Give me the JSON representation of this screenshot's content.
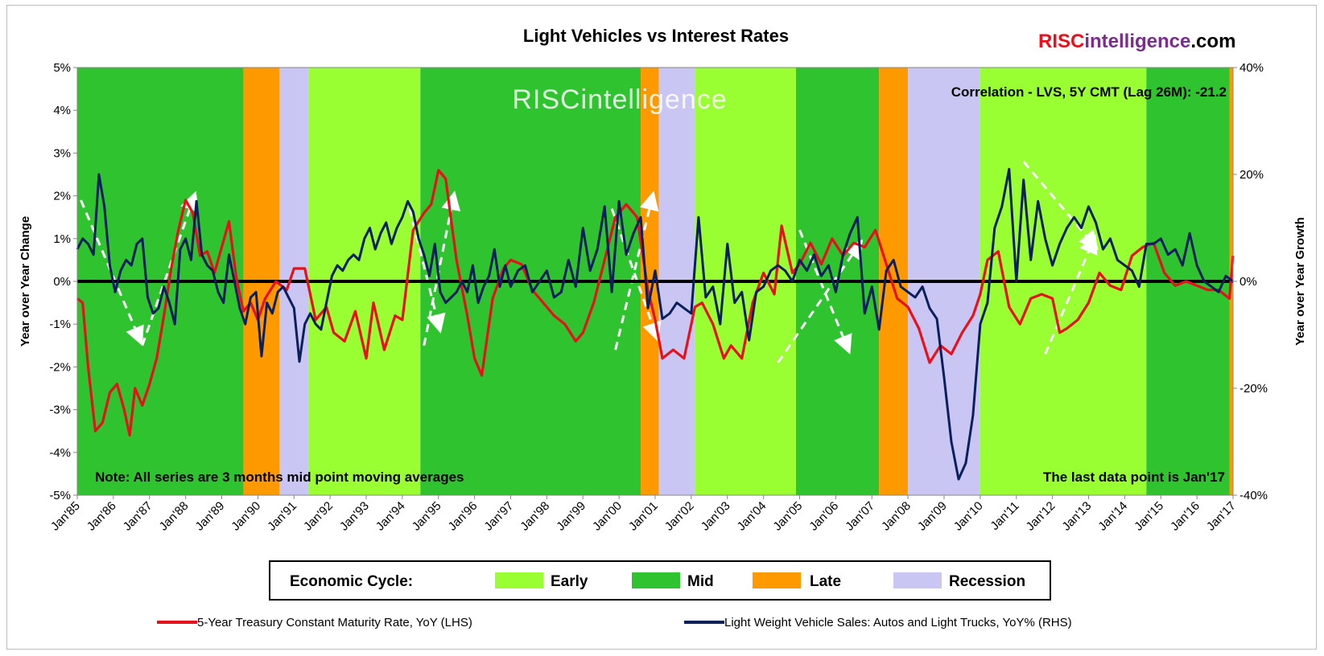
{
  "chart_data": {
    "type": "line",
    "title": "Light Vehicles vs Interest Rates",
    "brand": {
      "part1": "RISC",
      "part2": "intelligence",
      "part3": ".com",
      "color1": "#e8101a",
      "color2": "#7a2d8f",
      "color3": "#000000"
    },
    "watermark": "RISCintelligence",
    "correlation": "Correlation - LVS, 5Y CMT (Lag 26M): -21.2",
    "note_left": "Note: All series are 3 months mid point moving averages",
    "note_right": "The last data point is Jan'17",
    "ylabel_left": "Year over Year Change",
    "ylabel_right": "Year over Year Growth",
    "ylim_left": [
      -5,
      5
    ],
    "ylim_right": [
      -40,
      40
    ],
    "xlim": [
      1985.0,
      2017.0
    ],
    "yticks_left": [
      "5%",
      "4%",
      "3%",
      "2%",
      "1%",
      "0%",
      "-1%",
      "-2%",
      "-3%",
      "-4%",
      "-5%"
    ],
    "yticks_right": [
      "40%",
      "20%",
      "0%",
      "-20%",
      "-40%"
    ],
    "xticks": [
      "Jan'85",
      "Jan'86",
      "Jan'87",
      "Jan'88",
      "Jan'89",
      "Jan'90",
      "Jan'91",
      "Jan'92",
      "Jan'93",
      "Jan'94",
      "Jan'95",
      "Jan'96",
      "Jan'97",
      "Jan'98",
      "Jan'99",
      "Jan'00",
      "Jan'01",
      "Jan'02",
      "Jan'03",
      "Jan'04",
      "Jan'05",
      "Jan'06",
      "Jan'07",
      "Jan'08",
      "Jan'09",
      "Jan'10",
      "Jan'11",
      "Jan'12",
      "Jan'13",
      "Jan'14",
      "Jan'15",
      "Jan'16",
      "Jan'17"
    ],
    "cycle_colors": {
      "Early": "#99ff33",
      "Mid": "#2fc42f",
      "Late": "#ff9900",
      "Recession": "#c9c6f4"
    },
    "cycle_bands": [
      {
        "start": 1985.0,
        "end": 1989.6,
        "phase": "Mid"
      },
      {
        "start": 1989.6,
        "end": 1990.6,
        "phase": "Late"
      },
      {
        "start": 1990.6,
        "end": 1991.4,
        "phase": "Recession"
      },
      {
        "start": 1991.4,
        "end": 1994.5,
        "phase": "Early"
      },
      {
        "start": 1994.5,
        "end": 2000.6,
        "phase": "Mid"
      },
      {
        "start": 2000.6,
        "end": 2001.1,
        "phase": "Late"
      },
      {
        "start": 2001.1,
        "end": 2002.1,
        "phase": "Recession"
      },
      {
        "start": 2002.1,
        "end": 2004.9,
        "phase": "Early"
      },
      {
        "start": 2004.9,
        "end": 2007.2,
        "phase": "Mid"
      },
      {
        "start": 2007.2,
        "end": 2008.0,
        "phase": "Late"
      },
      {
        "start": 2008.0,
        "end": 2010.0,
        "phase": "Recession"
      },
      {
        "start": 2010.0,
        "end": 2014.6,
        "phase": "Early"
      },
      {
        "start": 2014.6,
        "end": 2016.9,
        "phase": "Mid"
      },
      {
        "start": 2016.9,
        "end": 2017.0,
        "phase": "Late"
      }
    ],
    "legend_cycle": {
      "label": "Economic Cycle:",
      "items": [
        "Early",
        "Mid",
        "Late",
        "Recession"
      ]
    },
    "series": [
      {
        "name": "5-Year Treasury Constant Maturity Rate, YoY (LHS)",
        "axis": "left",
        "color": "#e8101a",
        "x": [
          1985.0,
          1985.15,
          1985.3,
          1985.5,
          1985.7,
          1985.9,
          1986.1,
          1986.3,
          1986.45,
          1986.6,
          1986.8,
          1987.0,
          1987.2,
          1987.4,
          1987.6,
          1987.8,
          1988.0,
          1988.2,
          1988.4,
          1988.6,
          1988.8,
          1989.0,
          1989.2,
          1989.4,
          1989.6,
          1989.8,
          1990.0,
          1990.2,
          1990.5,
          1990.8,
          1991.0,
          1991.3,
          1991.6,
          1991.9,
          1992.1,
          1992.4,
          1992.7,
          1993.0,
          1993.2,
          1993.5,
          1993.8,
          1994.0,
          1994.3,
          1994.6,
          1994.8,
          1995.0,
          1995.2,
          1995.5,
          1995.8,
          1996.0,
          1996.2,
          1996.5,
          1996.8,
          1997.0,
          1997.3,
          1997.6,
          1997.9,
          1998.2,
          1998.5,
          1998.8,
          1999.0,
          1999.3,
          1999.6,
          1999.9,
          2000.2,
          2000.5,
          2000.8,
          2001.0,
          2001.2,
          2001.5,
          2001.8,
          2002.1,
          2002.3,
          2002.6,
          2002.9,
          2003.1,
          2003.4,
          2003.7,
          2004.0,
          2004.3,
          2004.5,
          2004.8,
          2005.0,
          2005.3,
          2005.6,
          2005.9,
          2006.2,
          2006.5,
          2006.8,
          2007.1,
          2007.4,
          2007.7,
          2008.0,
          2008.3,
          2008.6,
          2008.9,
          2009.2,
          2009.5,
          2009.8,
          2010.0,
          2010.2,
          2010.5,
          2010.8,
          2011.1,
          2011.4,
          2011.7,
          2012.0,
          2012.2,
          2012.4,
          2012.7,
          2013.0,
          2013.3,
          2013.6,
          2013.9,
          2014.2,
          2014.5,
          2014.8,
          2015.1,
          2015.4,
          2015.7,
          2016.0,
          2016.3,
          2016.6,
          2016.9,
          2017.0
        ],
        "y": [
          -0.4,
          -0.5,
          -2.0,
          -3.5,
          -3.3,
          -2.6,
          -2.4,
          -3.0,
          -3.6,
          -2.5,
          -2.9,
          -2.4,
          -1.8,
          -0.8,
          0.3,
          1.2,
          1.9,
          1.6,
          0.6,
          0.7,
          0.2,
          0.8,
          1.4,
          0.1,
          -0.7,
          -0.5,
          -0.9,
          -0.4,
          0.0,
          -0.2,
          0.3,
          0.3,
          -0.9,
          -0.6,
          -1.2,
          -1.4,
          -0.7,
          -1.8,
          -0.5,
          -1.6,
          -0.8,
          -0.9,
          1.2,
          1.6,
          1.8,
          2.6,
          2.4,
          0.5,
          -0.8,
          -1.8,
          -2.2,
          -0.4,
          0.3,
          0.5,
          0.4,
          -0.2,
          -0.5,
          -0.8,
          -1.0,
          -1.4,
          -1.2,
          -0.5,
          0.5,
          1.5,
          1.8,
          1.5,
          -0.2,
          -0.9,
          -1.8,
          -1.6,
          -1.8,
          -0.6,
          -0.5,
          -1.0,
          -1.8,
          -1.5,
          -1.8,
          -0.5,
          0.2,
          -0.3,
          1.3,
          0.2,
          0.4,
          0.9,
          0.4,
          1.0,
          0.6,
          0.9,
          0.8,
          1.2,
          0.4,
          -0.4,
          -0.6,
          -1.1,
          -1.9,
          -1.5,
          -1.7,
          -1.2,
          -0.8,
          -0.3,
          0.5,
          0.7,
          -0.6,
          -1.0,
          -0.4,
          -0.3,
          -0.4,
          -1.2,
          -1.1,
          -0.9,
          -0.5,
          0.2,
          -0.1,
          -0.2,
          0.6,
          0.8,
          0.9,
          0.2,
          -0.1,
          0.0,
          -0.1,
          -0.2,
          -0.2,
          -0.4,
          0.6
        ]
      },
      {
        "name": "Light Weight Vehicle Sales: Autos and Light Trucks, YoY% (RHS)",
        "axis": "right",
        "color": "#0b1f5c",
        "x": [
          1985.0,
          1985.15,
          1985.3,
          1985.45,
          1985.6,
          1985.75,
          1985.9,
          1986.05,
          1986.2,
          1986.35,
          1986.5,
          1986.65,
          1986.8,
          1986.95,
          1987.1,
          1987.25,
          1987.4,
          1987.55,
          1987.7,
          1987.85,
          1988.0,
          1988.15,
          1988.3,
          1988.45,
          1988.6,
          1988.75,
          1988.9,
          1989.05,
          1989.2,
          1989.35,
          1989.5,
          1989.65,
          1989.8,
          1989.95,
          1990.1,
          1990.25,
          1990.4,
          1990.55,
          1990.7,
          1990.85,
          1991.0,
          1991.15,
          1991.3,
          1991.45,
          1991.6,
          1991.75,
          1991.9,
          1992.05,
          1992.2,
          1992.35,
          1992.5,
          1992.65,
          1992.8,
          1992.95,
          1993.1,
          1993.25,
          1993.4,
          1993.55,
          1993.7,
          1993.85,
          1994.0,
          1994.15,
          1994.3,
          1994.45,
          1994.6,
          1994.75,
          1994.9,
          1995.05,
          1995.2,
          1995.35,
          1995.5,
          1995.65,
          1995.8,
          1995.95,
          1996.1,
          1996.25,
          1996.4,
          1996.55,
          1996.7,
          1996.85,
          1997.0,
          1997.2,
          1997.4,
          1997.6,
          1997.8,
          1998.0,
          1998.2,
          1998.4,
          1998.6,
          1998.8,
          1999.0,
          1999.2,
          1999.4,
          1999.6,
          1999.8,
          2000.0,
          2000.2,
          2000.4,
          2000.6,
          2000.8,
          2001.0,
          2001.2,
          2001.4,
          2001.6,
          2001.8,
          2002.0,
          2002.2,
          2002.4,
          2002.6,
          2002.8,
          2003.0,
          2003.2,
          2003.4,
          2003.6,
          2003.8,
          2004.0,
          2004.2,
          2004.4,
          2004.6,
          2004.8,
          2005.0,
          2005.2,
          2005.4,
          2005.6,
          2005.8,
          2006.0,
          2006.2,
          2006.4,
          2006.6,
          2006.8,
          2007.0,
          2007.2,
          2007.4,
          2007.6,
          2007.8,
          2008.0,
          2008.2,
          2008.4,
          2008.6,
          2008.8,
          2009.0,
          2009.2,
          2009.4,
          2009.6,
          2009.8,
          2010.0,
          2010.2,
          2010.4,
          2010.6,
          2010.8,
          2011.0,
          2011.2,
          2011.4,
          2011.6,
          2011.8,
          2012.0,
          2012.2,
          2012.4,
          2012.6,
          2012.8,
          2013.0,
          2013.2,
          2013.4,
          2013.6,
          2013.8,
          2014.0,
          2014.2,
          2014.4,
          2014.6,
          2014.8,
          2015.0,
          2015.2,
          2015.4,
          2015.6,
          2015.8,
          2016.0,
          2016.2,
          2016.4,
          2016.6,
          2016.8,
          2017.0
        ],
        "y": [
          6,
          8,
          7,
          5,
          20,
          14,
          3,
          -2,
          2,
          4,
          3,
          7,
          8,
          -3,
          -6,
          -5,
          -1,
          -4,
          -8,
          6,
          8,
          4,
          15,
          5,
          3,
          2,
          -2,
          -4,
          5,
          0,
          -5,
          -8,
          -3,
          -2,
          -14,
          -4,
          -6,
          -2,
          -1,
          -3,
          -5,
          -15,
          -8,
          -6,
          -8,
          -9,
          -4,
          1,
          3,
          2,
          4,
          5,
          4,
          8,
          10,
          6,
          9,
          11,
          7,
          10,
          12,
          15,
          13,
          8,
          5,
          1,
          7,
          -2,
          -4,
          -3,
          -2,
          0,
          -2,
          3,
          -4,
          -1,
          1,
          6,
          -1,
          3,
          -1,
          2,
          3,
          -2,
          0,
          2,
          -3,
          -2,
          4,
          -1,
          10,
          2,
          6,
          14,
          -2,
          15,
          5,
          9,
          12,
          -5,
          2,
          -7,
          -6,
          -4,
          -5,
          -6,
          12,
          -3,
          -1,
          -8,
          7,
          -4,
          -2,
          -11,
          -2,
          -1,
          2,
          3,
          2,
          0,
          4,
          2,
          5,
          1,
          3,
          -2,
          5,
          9,
          12,
          -6,
          -1,
          -9,
          2,
          4,
          -1,
          -2,
          -3,
          -1,
          -5,
          -7,
          -18,
          -30,
          -37,
          -34,
          -25,
          -8,
          -4,
          10,
          14,
          21,
          0,
          19,
          4,
          15,
          8,
          3,
          7,
          10,
          12,
          10,
          14,
          11,
          6,
          8,
          4,
          3,
          2,
          -1,
          7,
          7,
          8,
          5,
          6,
          3,
          9,
          3,
          0,
          -1,
          -2,
          1,
          0
        ]
      }
    ]
  }
}
